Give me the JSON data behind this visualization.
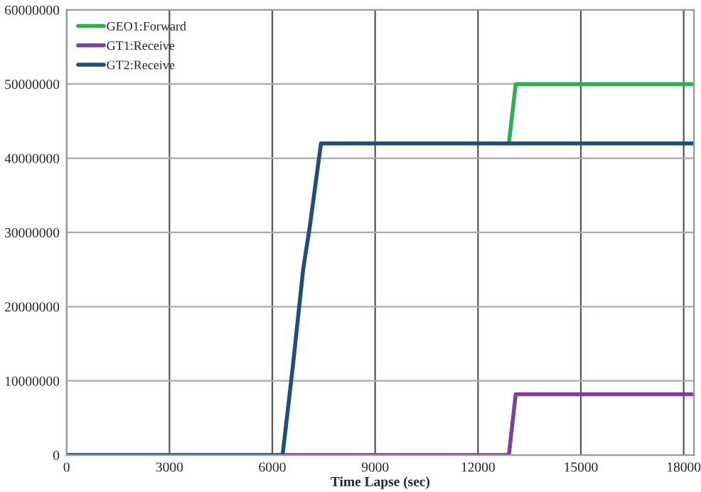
{
  "chart_data": {
    "type": "line",
    "xlabel": "Time Lapse (sec)",
    "series": [
      {
        "name": "GEO1:Forward",
        "color": "#2db14e",
        "x": [
          12900,
          13100,
          18300
        ],
        "values": [
          42000000,
          50000000,
          50000000
        ]
      },
      {
        "name": "GT1:Receive",
        "color": "#7b3f9e",
        "x": [
          6300,
          12900,
          13100,
          18300
        ],
        "values": [
          0,
          0,
          8200000,
          8200000
        ]
      },
      {
        "name": "GT2:Receive",
        "color": "#1f4e79",
        "x": [
          0,
          6300,
          6600,
          6900,
          7100,
          7420,
          18300
        ],
        "values": [
          0,
          0,
          12000000,
          25000000,
          31000000,
          42000000,
          42000000
        ]
      }
    ],
    "xlim": [
      0,
      18300
    ],
    "xticks": [
      0,
      3000,
      6000,
      9000,
      12000,
      15000,
      18000
    ],
    "ylim": [
      0,
      60000000
    ],
    "yticks": [
      0,
      10000000,
      20000000,
      30000000,
      40000000,
      50000000,
      60000000
    ],
    "grid": true,
    "legend": "top left",
    "line_style": "solid"
  }
}
